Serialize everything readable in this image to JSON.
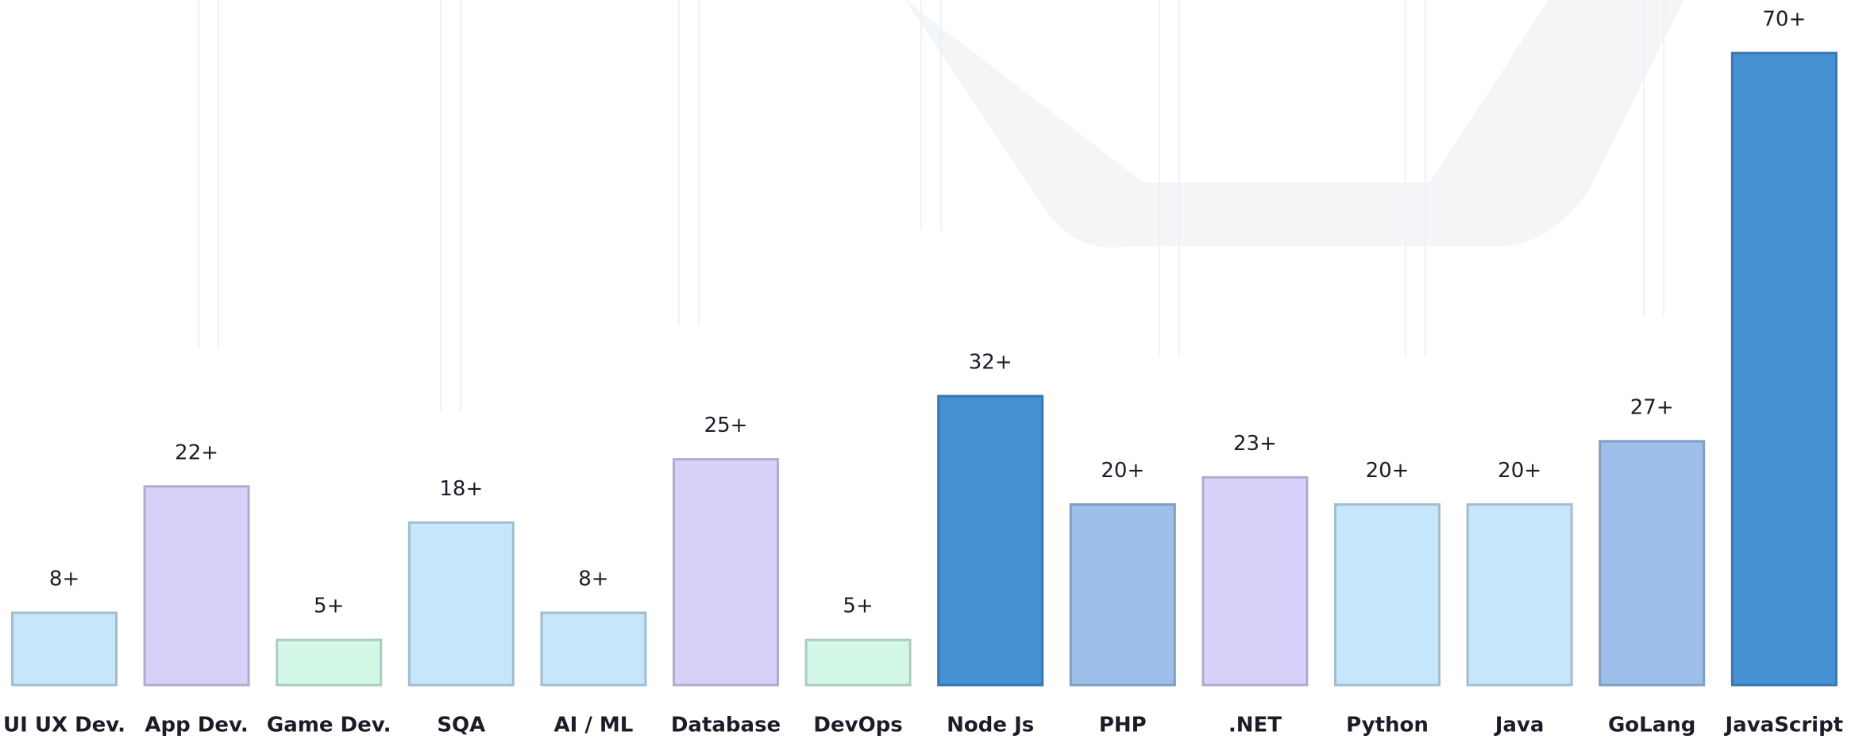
{
  "chart_data": {
    "type": "bar",
    "categories": [
      "UI UX Dev.",
      "App Dev.",
      "Game Dev.",
      "SQA",
      "AI / ML",
      "Database",
      "DevOps",
      "Node Js",
      "PHP",
      ".NET",
      "Python",
      "Java",
      "GoLang",
      "JavaScript"
    ],
    "values": [
      8,
      22,
      5,
      18,
      8,
      25,
      5,
      32,
      20,
      23,
      20,
      20,
      27,
      70
    ],
    "value_labels": [
      "8+",
      "22+",
      "5+",
      "18+",
      "8+",
      "25+",
      "5+",
      "32+",
      "20+",
      "23+",
      "20+",
      "20+",
      "27+",
      "70+"
    ],
    "colors": [
      "#c5e6fb",
      "#d8d2fb",
      "#d3f8e8",
      "#c5e6fb",
      "#c5e6fb",
      "#d8d2fb",
      "#d3f8e8",
      "#4690d4",
      "#9dbfea",
      "#d8d2fb",
      "#c5e6fb",
      "#c5e6fb",
      "#9dbfea",
      "#4690d4"
    ],
    "ylim": [
      0,
      72
    ]
  }
}
